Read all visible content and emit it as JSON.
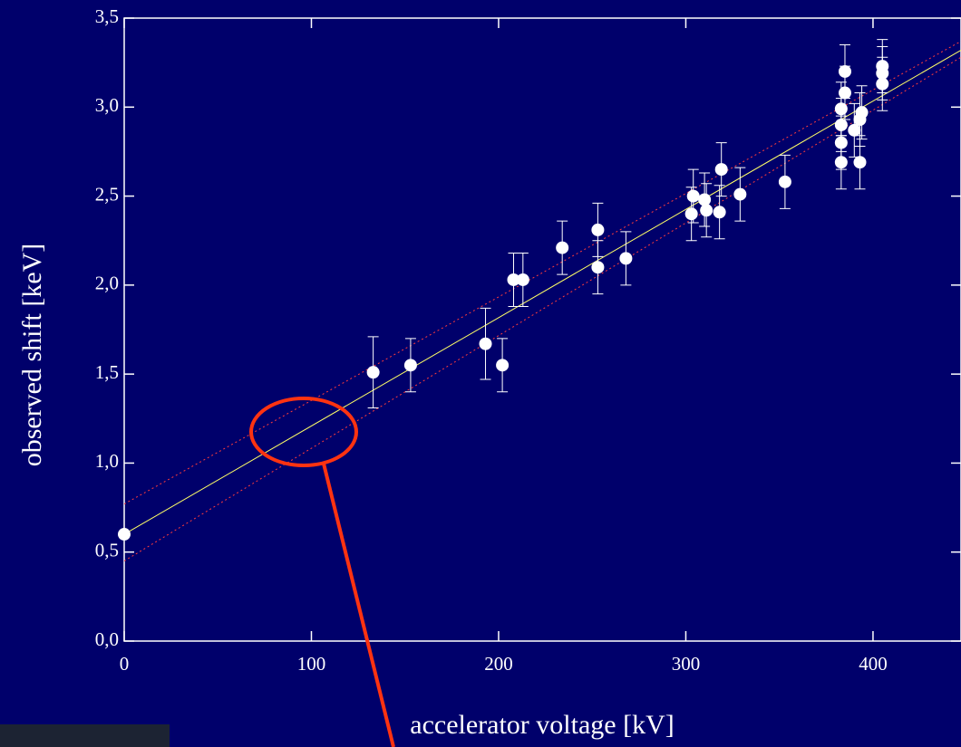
{
  "chart_data": {
    "type": "scatter",
    "x_label": "accelerator voltage [kV]",
    "y_label": "observed shift [keV]",
    "xlim": [
      0,
      447
    ],
    "ylim": [
      0,
      3.5
    ],
    "xticks": [
      0,
      100,
      200,
      300,
      400
    ],
    "yticks": [
      {
        "value": 0,
        "label": "0,0"
      },
      {
        "value": 0.5,
        "label": "0,5"
      },
      {
        "value": 1,
        "label": "1,0"
      },
      {
        "value": 1.5,
        "label": "1,5"
      },
      {
        "value": 2,
        "label": "2,0"
      },
      {
        "value": 2.5,
        "label": "2,5"
      },
      {
        "value": 3,
        "label": "3,0"
      },
      {
        "value": 3.5,
        "label": "3,5"
      }
    ],
    "points": {
      "color": "#ffffff",
      "x": [
        0,
        133,
        153,
        193,
        202,
        208,
        213,
        234,
        253,
        253,
        268,
        303,
        304,
        310,
        311,
        318,
        319,
        329,
        353,
        383,
        383,
        383,
        383,
        385,
        385,
        390,
        393,
        394,
        393,
        405,
        405,
        405
      ],
      "values": [
        0.6,
        1.51,
        1.55,
        1.67,
        1.55,
        2.03,
        2.03,
        2.21,
        2.31,
        2.1,
        2.15,
        2.4,
        2.5,
        2.48,
        2.42,
        2.41,
        2.65,
        2.51,
        2.58,
        2.99,
        2.69,
        2.8,
        2.9,
        3.2,
        3.08,
        2.87,
        2.93,
        2.97,
        2.69,
        3.23,
        3.19,
        3.13
      ],
      "errors": [
        0,
        0.2,
        0.15,
        0.2,
        0.15,
        0.15,
        0.15,
        0.15,
        0.15,
        0.15,
        0.15,
        0.15,
        0.15,
        0.15,
        0.15,
        0.15,
        0.15,
        0.15,
        0.15,
        0.15,
        0.15,
        0.15,
        0.15,
        0.15,
        0.15,
        0.15,
        0.15,
        0.15,
        0.15,
        0.15,
        0.15,
        0.15
      ]
    },
    "fit": {
      "color": "#ffff66",
      "x": [
        0,
        447
      ],
      "values": [
        0.6,
        3.32
      ]
    },
    "bands": [
      {
        "color": "#ff3b3b",
        "x": [
          0,
          447
        ],
        "values": [
          0.77,
          3.37
        ]
      },
      {
        "color": "#ff3b3b",
        "x": [
          0,
          447
        ],
        "values": [
          0.45,
          3.28
        ]
      }
    ]
  }
}
